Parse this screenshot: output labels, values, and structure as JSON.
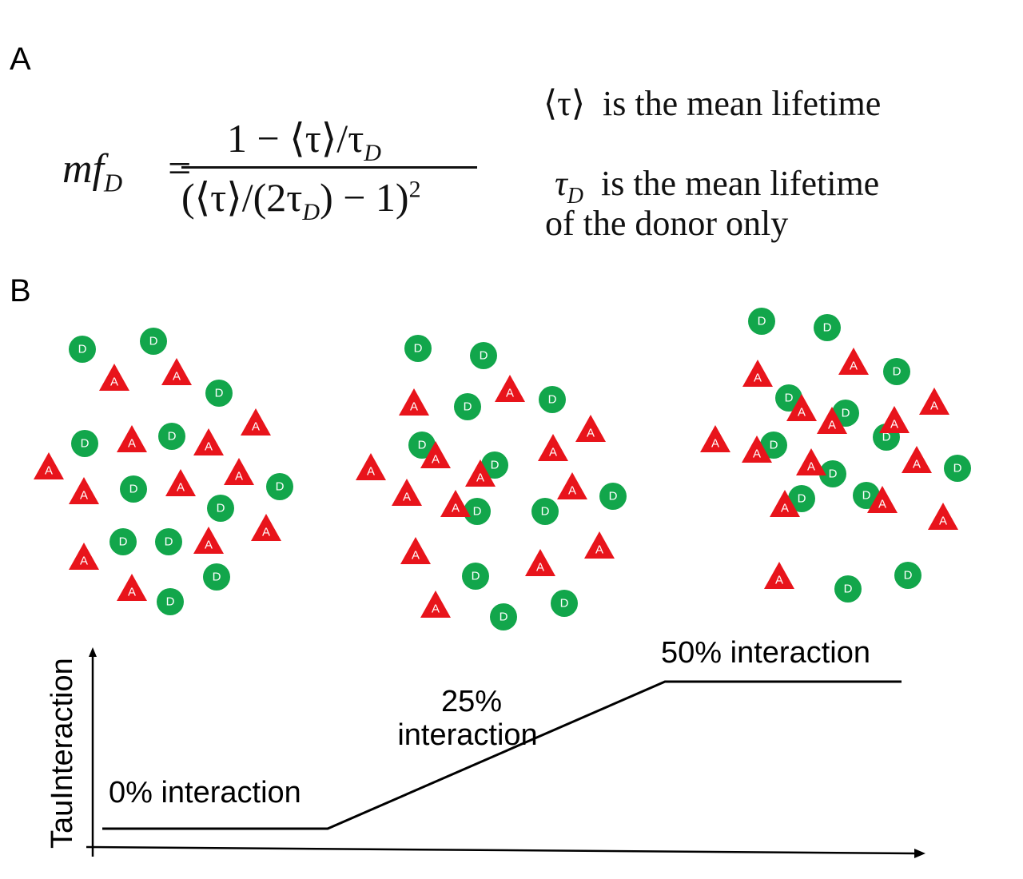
{
  "panel_a": {
    "label": "A",
    "equation": {
      "lhs_main": "mf",
      "lhs_sub": "D",
      "equals": "=",
      "numerator": "1 − ⟨τ⟩/τ",
      "numerator_sub": "D",
      "denominator_a": "(⟨τ⟩/(2τ",
      "denominator_sub": "D",
      "denominator_b": ") − 1)",
      "denominator_sup": "2"
    },
    "definitions": {
      "line1_symbol": "⟨τ⟩",
      "line1_text": "is the mean lifetime",
      "line2_symbol": "τ",
      "line2_symbol_sub": "D",
      "line2_text": "is the mean lifetime",
      "line3_text": "of the donor only"
    }
  },
  "panel_b": {
    "label": "B",
    "donor_color": "#12a64b",
    "acceptor_color": "#e8141b",
    "donor_label": "D",
    "acceptor_label": "A",
    "plot": {
      "ylabel": "TauInteraction",
      "levels": [
        {
          "label": "0% interaction"
        },
        {
          "label": "25%",
          "label_line2": "interaction"
        },
        {
          "label": "50% interaction"
        }
      ]
    }
  }
}
